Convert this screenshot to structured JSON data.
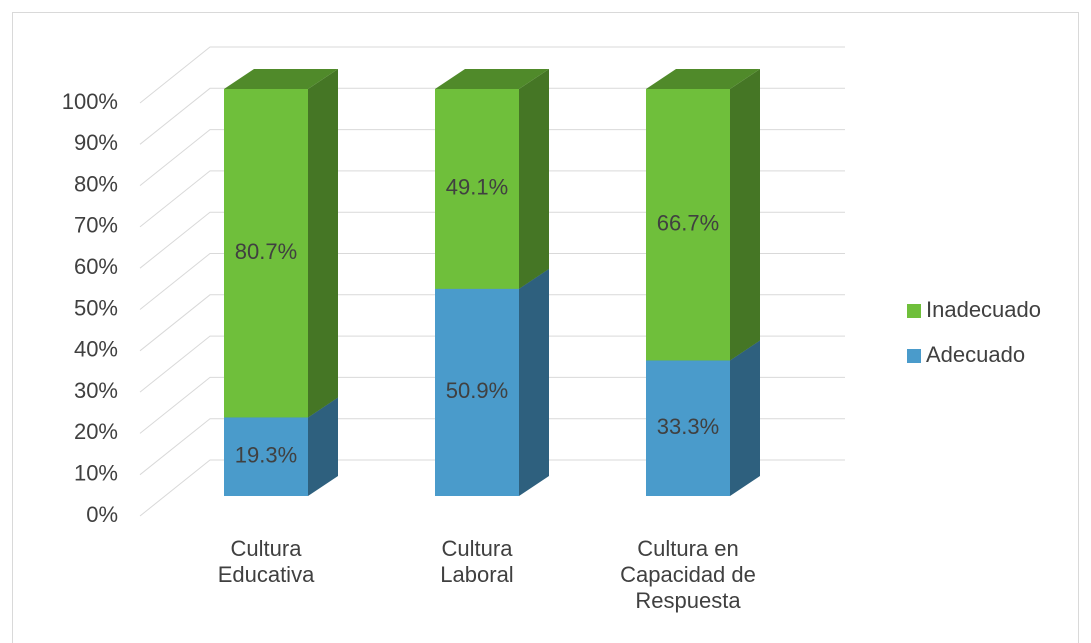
{
  "chart_data": {
    "type": "bar3d_stacked",
    "categories": [
      "Cultura Educativa",
      "Cultura Laboral",
      "Cultura en Capacidad de Respuesta"
    ],
    "series": [
      {
        "name": "Adecuado",
        "color": "#4a9bcb",
        "values": [
          19.3,
          50.9,
          33.3
        ],
        "value_labels": [
          "19.3%",
          "50.9%",
          "33.3%"
        ]
      },
      {
        "name": "Inadecuado",
        "color": "#6fbf3b",
        "values": [
          80.7,
          49.1,
          66.7
        ],
        "value_labels": [
          "80.7%",
          "49.1%",
          "66.7%"
        ]
      }
    ],
    "ylim": [
      0,
      100
    ],
    "yticks": [
      {
        "value": 0,
        "label": "0%"
      },
      {
        "value": 10,
        "label": "10%"
      },
      {
        "value": 20,
        "label": "20%"
      },
      {
        "value": 30,
        "label": "30%"
      },
      {
        "value": 40,
        "label": "40%"
      },
      {
        "value": 50,
        "label": "50%"
      },
      {
        "value": 60,
        "label": "60%"
      },
      {
        "value": 70,
        "label": "70%"
      },
      {
        "value": 80,
        "label": "80%"
      },
      {
        "value": 90,
        "label": "90%"
      },
      {
        "value": 100,
        "label": "100%"
      }
    ],
    "grid": true,
    "legend": "right"
  }
}
